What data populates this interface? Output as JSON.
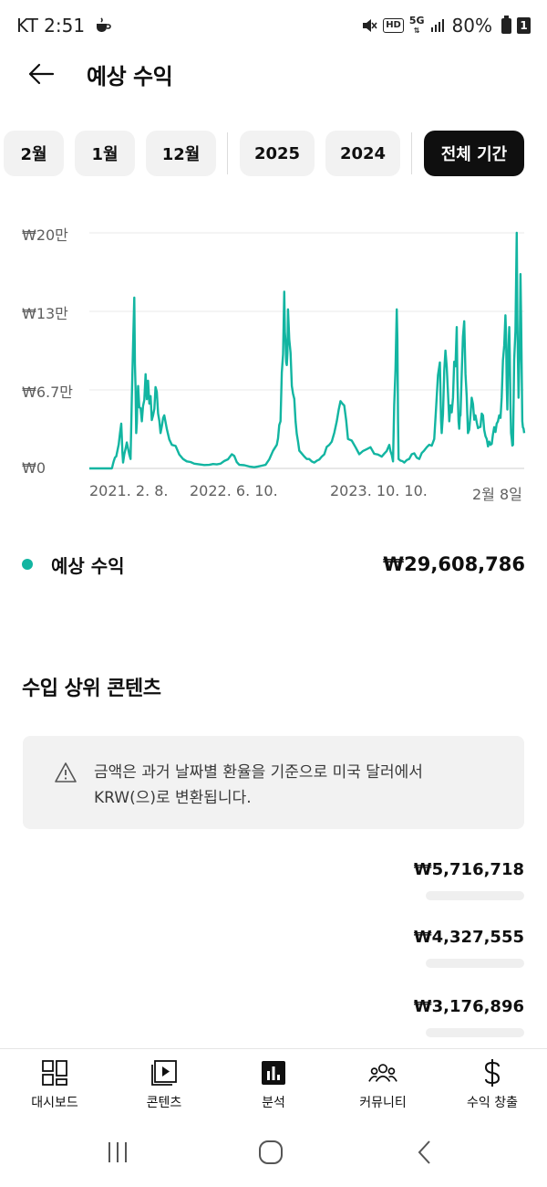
{
  "status": {
    "carrier_time": "KT 2:51",
    "battery": "80%",
    "sim": "1",
    "network": "5G",
    "hd": "HD"
  },
  "header": {
    "title": "예상 수익"
  },
  "periods": [
    {
      "label": "2월",
      "active": false
    },
    {
      "label": "1월",
      "active": false
    },
    {
      "label": "12월",
      "active": false
    },
    {
      "label": "2025",
      "active": false
    },
    {
      "label": "2024",
      "active": false
    },
    {
      "label": "전체 기간",
      "active": true
    }
  ],
  "chart_data": {
    "type": "line",
    "series": [
      {
        "name": "예상 수익",
        "color": "#12b5a1"
      }
    ],
    "y_ticks": [
      "₩20만",
      "₩13만",
      "₩6.7만",
      "₩0"
    ],
    "x_ticks": [
      "2021. 2. 8.",
      "2022. 6. 10.",
      "2023. 10. 10.",
      "2월 8일"
    ],
    "ylim": [
      0,
      200000
    ],
    "grid": true,
    "anchors": [
      [
        0,
        0
      ],
      [
        0.06,
        0
      ],
      [
        0.065,
        6000
      ],
      [
        0.075,
        15000
      ],
      [
        0.085,
        38000
      ],
      [
        0.09,
        5000
      ],
      [
        0.1,
        22000
      ],
      [
        0.11,
        8000
      ],
      [
        0.12,
        145000
      ],
      [
        0.125,
        30000
      ],
      [
        0.13,
        70000
      ],
      [
        0.14,
        40000
      ],
      [
        0.15,
        80000
      ],
      [
        0.16,
        55000
      ],
      [
        0.17,
        45000
      ],
      [
        0.18,
        65000
      ],
      [
        0.19,
        30000
      ],
      [
        0.2,
        45000
      ],
      [
        0.22,
        20000
      ],
      [
        0.25,
        8000
      ],
      [
        0.28,
        4000
      ],
      [
        0.32,
        3000
      ],
      [
        0.35,
        4000
      ],
      [
        0.38,
        12000
      ],
      [
        0.4,
        3000
      ],
      [
        0.44,
        1000
      ],
      [
        0.47,
        3000
      ],
      [
        0.5,
        20000
      ],
      [
        0.51,
        40000
      ],
      [
        0.52,
        150000
      ],
      [
        0.525,
        90000
      ],
      [
        0.53,
        135000
      ],
      [
        0.54,
        70000
      ],
      [
        0.55,
        40000
      ],
      [
        0.56,
        15000
      ],
      [
        0.58,
        8000
      ],
      [
        0.6,
        5000
      ],
      [
        0.62,
        10000
      ],
      [
        0.64,
        20000
      ],
      [
        0.66,
        40000
      ],
      [
        0.675,
        55000
      ],
      [
        0.69,
        25000
      ],
      [
        0.72,
        12000
      ],
      [
        0.75,
        18000
      ],
      [
        0.78,
        10000
      ],
      [
        0.8,
        20000
      ],
      [
        0.81,
        6000
      ],
      [
        0.82,
        135000
      ],
      [
        0.825,
        8000
      ],
      [
        0.84,
        5000
      ],
      [
        0.86,
        12000
      ],
      [
        0.88,
        8000
      ],
      [
        0.9,
        18000
      ],
      [
        0.92,
        25000
      ],
      [
        0.935,
        90000
      ],
      [
        0.94,
        30000
      ],
      [
        0.95,
        100000
      ],
      [
        0.96,
        40000
      ],
      [
        0.97,
        60000
      ],
      [
        0.98,
        120000
      ],
      [
        0.985,
        40000
      ],
      [
        0.99,
        45000
      ],
      [
        1.0,
        125000
      ],
      [
        1.01,
        30000
      ],
      [
        1.02,
        60000
      ],
      [
        1.03,
        45000
      ],
      [
        1.04,
        35000
      ],
      [
        1.05,
        45000
      ],
      [
        1.06,
        25000
      ],
      [
        1.07,
        20000
      ],
      [
        1.08,
        35000
      ],
      [
        1.09,
        40000
      ],
      [
        1.1,
        60000
      ],
      [
        1.11,
        130000
      ],
      [
        1.115,
        50000
      ],
      [
        1.12,
        120000
      ],
      [
        1.125,
        30000
      ],
      [
        1.13,
        20000
      ],
      [
        1.14,
        200000
      ],
      [
        1.145,
        60000
      ],
      [
        1.15,
        165000
      ],
      [
        1.155,
        40000
      ],
      [
        1.16,
        30000
      ]
    ]
  },
  "legend": {
    "label": "예상 수익",
    "value": "₩29,608,786"
  },
  "top_content": {
    "title": "수입 상위 콘텐츠",
    "notice": "금액은 과거 날짜별 환율을 기준으로 미국 달러에서 KRW(으)로 변환됩니다.",
    "items": [
      {
        "value": "₩5,716,718"
      },
      {
        "value": "₩4,327,555"
      },
      {
        "lead": ".",
        "value": "₩3,176,896"
      }
    ]
  },
  "nav": {
    "items": [
      {
        "label": "대시보드",
        "icon": "dashboard-icon"
      },
      {
        "label": "콘텐츠",
        "icon": "content-icon"
      },
      {
        "label": "분석",
        "icon": "analytics-icon"
      },
      {
        "label": "커뮤니티",
        "icon": "community-icon"
      },
      {
        "label": "수익 창출",
        "icon": "monetization-icon"
      }
    ]
  }
}
